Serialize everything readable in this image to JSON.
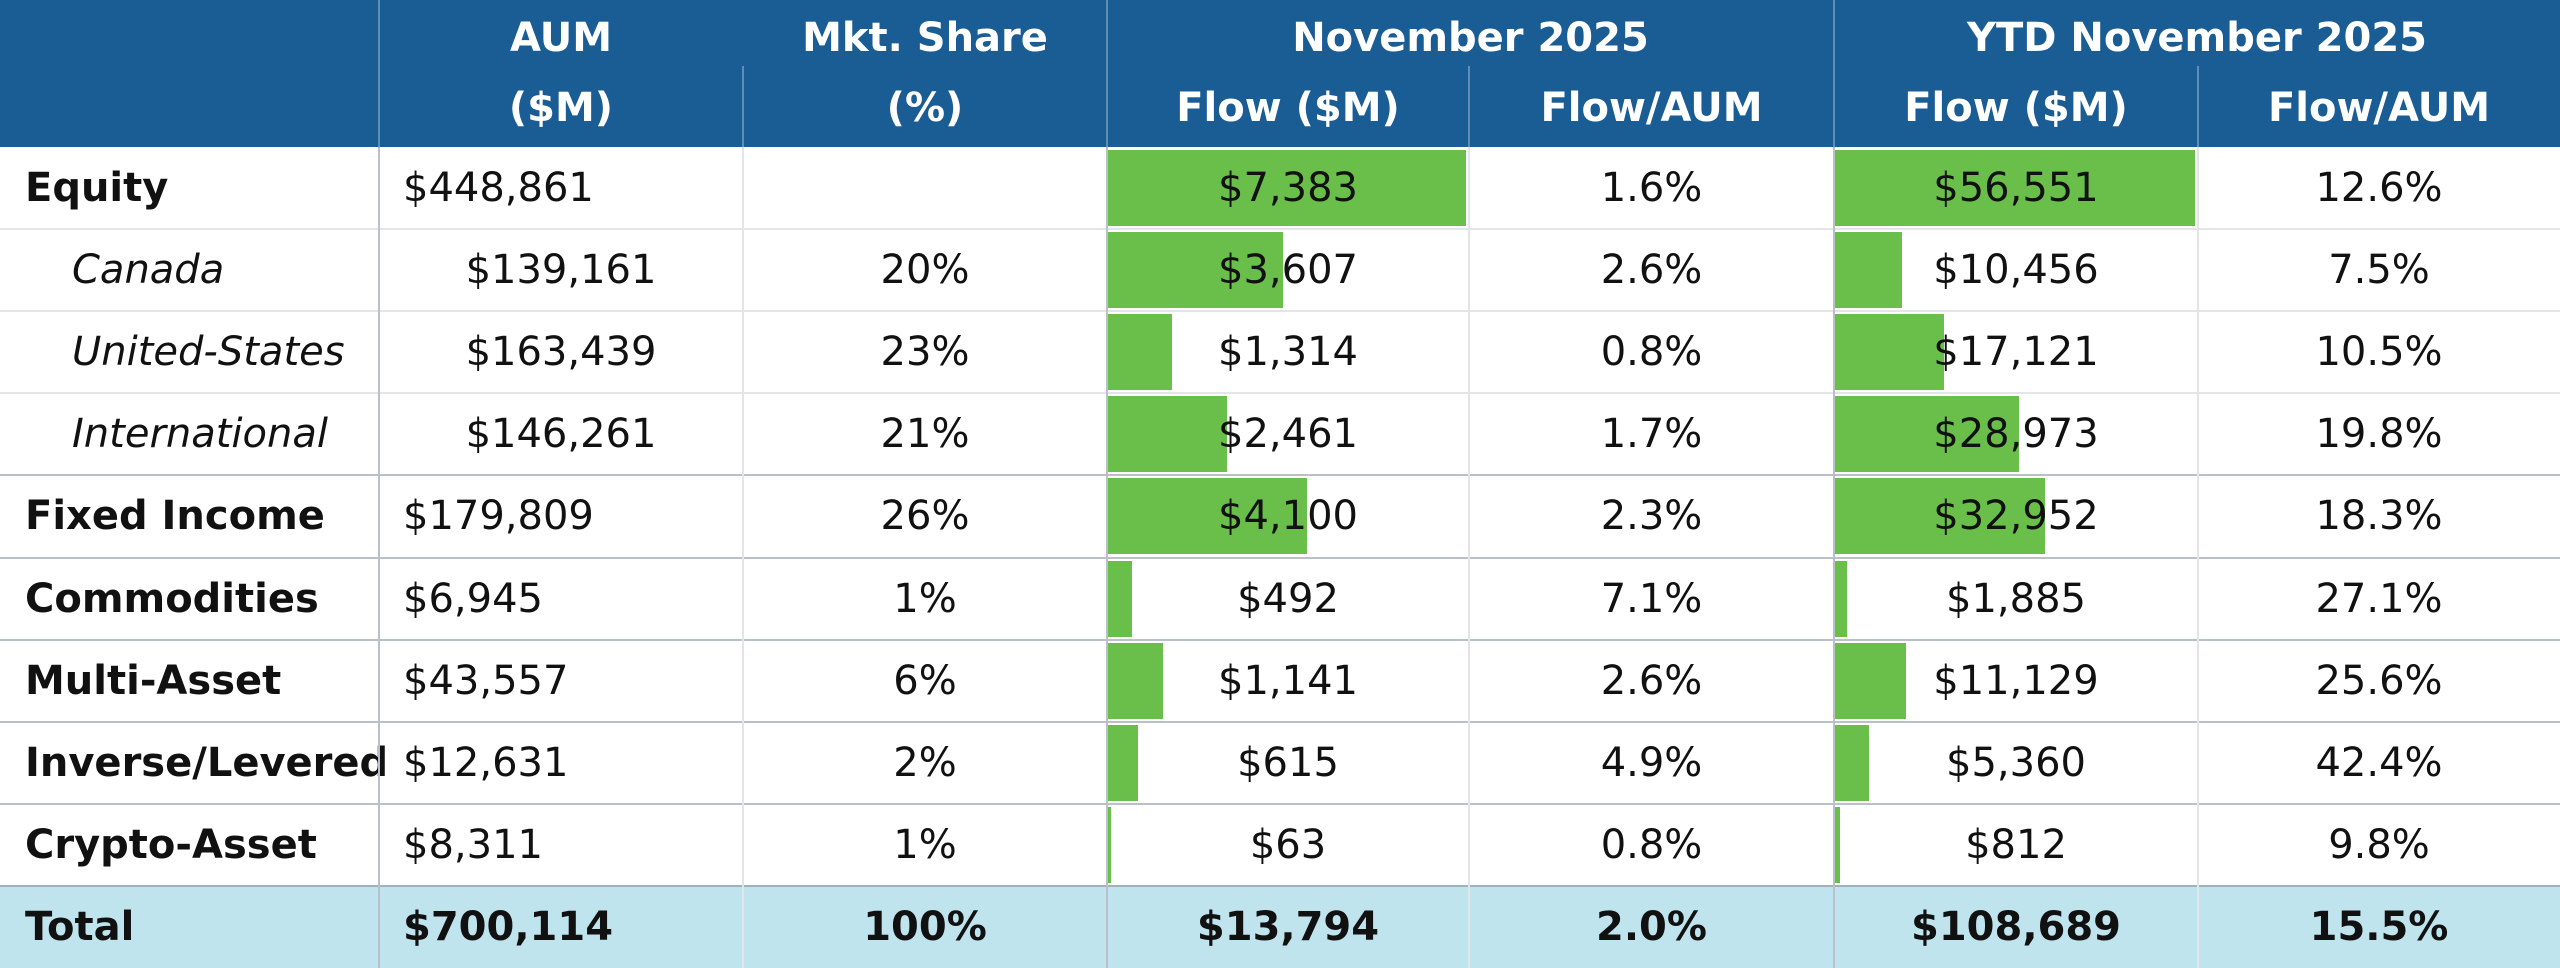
{
  "header": {
    "aum": [
      "AUM",
      "($M)"
    ],
    "share": [
      "Mkt. Share",
      "(%)"
    ],
    "groups": [
      "November 2025",
      "YTD November 2025"
    ],
    "nov_flow": "Flow ($M)",
    "nov_ratio": "Flow/AUM",
    "ytd_flow": "Flow ($M)",
    "ytd_ratio": "Flow/AUM"
  },
  "rows": [
    {
      "label": "Equity",
      "level": 0,
      "aum": "$448,861",
      "share": null,
      "nov_flow": 7383,
      "nov_flow_label": "$7,383",
      "nov_ratio": "1.6%",
      "ytd_flow": 56551,
      "ytd_flow_label": "$56,551",
      "ytd_ratio": "12.6%"
    },
    {
      "label": "Canada",
      "level": 1,
      "aum": "$139,161",
      "share": "20%",
      "nov_flow": 3607,
      "nov_flow_label": "$3,607",
      "nov_ratio": "2.6%",
      "ytd_flow": 10456,
      "ytd_flow_label": "$10,456",
      "ytd_ratio": "7.5%"
    },
    {
      "label": "United-States",
      "level": 1,
      "aum": "$163,439",
      "share": "23%",
      "nov_flow": 1314,
      "nov_flow_label": "$1,314",
      "nov_ratio": "0.8%",
      "ytd_flow": 17121,
      "ytd_flow_label": "$17,121",
      "ytd_ratio": "10.5%"
    },
    {
      "label": "International",
      "level": 1,
      "aum": "$146,261",
      "share": "21%",
      "nov_flow": 2461,
      "nov_flow_label": "$2,461",
      "nov_ratio": "1.7%",
      "ytd_flow": 28973,
      "ytd_flow_label": "$28,973",
      "ytd_ratio": "19.8%"
    },
    {
      "label": "Fixed Income",
      "level": 0,
      "aum": "$179,809",
      "share": "26%",
      "nov_flow": 4100,
      "nov_flow_label": "$4,100",
      "nov_ratio": "2.3%",
      "ytd_flow": 32952,
      "ytd_flow_label": "$32,952",
      "ytd_ratio": "18.3%"
    },
    {
      "label": "Commodities",
      "level": 0,
      "aum": "$6,945",
      "share": "1%",
      "nov_flow": 492,
      "nov_flow_label": "$492",
      "nov_ratio": "7.1%",
      "ytd_flow": 1885,
      "ytd_flow_label": "$1,885",
      "ytd_ratio": "27.1%"
    },
    {
      "label": "Multi-Asset",
      "level": 0,
      "aum": "$43,557",
      "share": "6%",
      "nov_flow": 1141,
      "nov_flow_label": "$1,141",
      "nov_ratio": "2.6%",
      "ytd_flow": 11129,
      "ytd_flow_label": "$11,129",
      "ytd_ratio": "25.6%"
    },
    {
      "label": "Inverse/Levered",
      "level": 0,
      "aum": "$12,631",
      "share": "2%",
      "nov_flow": 615,
      "nov_flow_label": "$615",
      "nov_ratio": "4.9%",
      "ytd_flow": 5360,
      "ytd_flow_label": "$5,360",
      "ytd_ratio": "42.4%"
    },
    {
      "label": "Crypto-Asset",
      "level": 0,
      "aum": "$8,311",
      "share": "1%",
      "nov_flow": 63,
      "nov_flow_label": "$63",
      "nov_ratio": "0.8%",
      "ytd_flow": 812,
      "ytd_flow_label": "$812",
      "ytd_ratio": "9.8%"
    }
  ],
  "total": {
    "label": "Total",
    "aum": "$700,114",
    "share": "100%",
    "nov_flow": "$13,794",
    "nov_ratio": "2.0%",
    "ytd_flow": "$108,689",
    "ytd_ratio": "15.5%"
  },
  "bar_color": "#6abf4b"
}
